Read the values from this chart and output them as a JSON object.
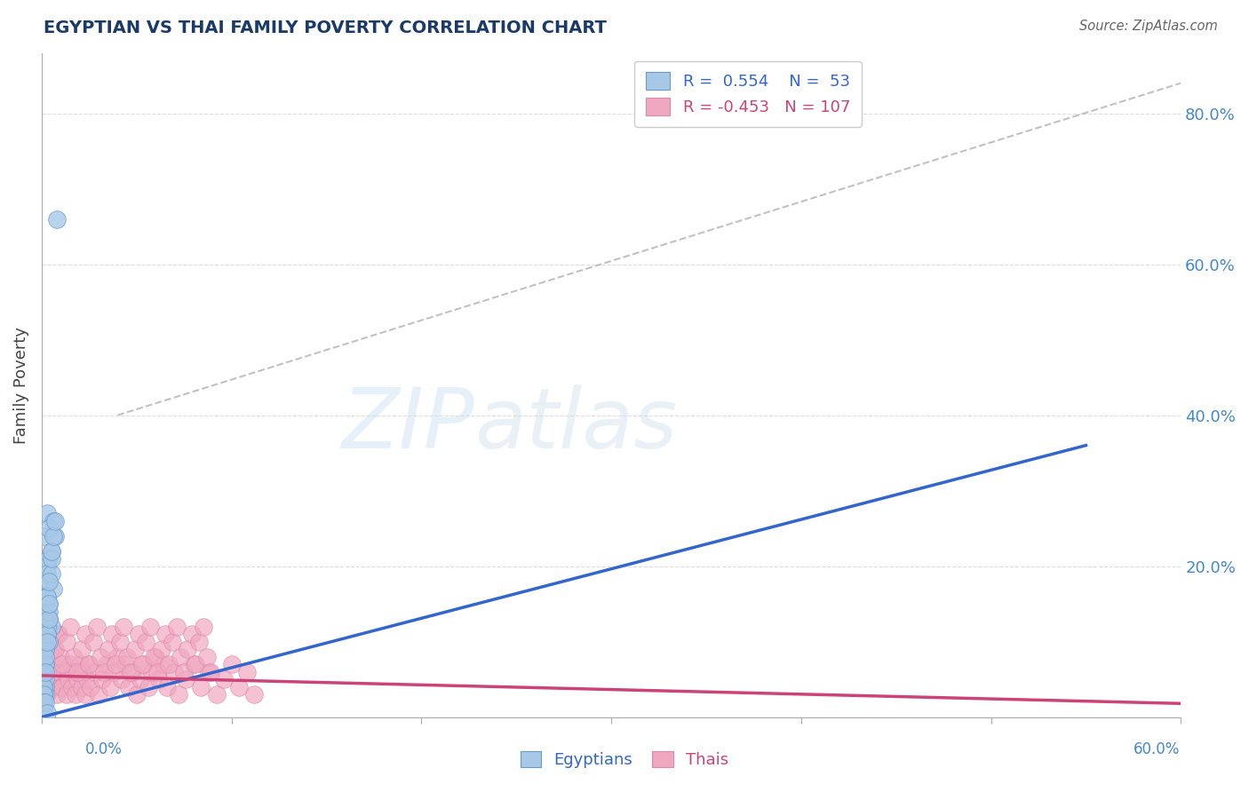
{
  "title": "EGYPTIAN VS THAI FAMILY POVERTY CORRELATION CHART",
  "source": "Source: ZipAtlas.com",
  "ylabel": "Family Poverty",
  "xmin": 0.0,
  "xmax": 0.6,
  "ymin": 0.0,
  "ymax": 0.88,
  "yticks": [
    0.0,
    0.2,
    0.4,
    0.6,
    0.8
  ],
  "ytick_labels": [
    "",
    "20.0%",
    "40.0%",
    "60.0%",
    "80.0%"
  ],
  "xticks": [
    0.0,
    0.1,
    0.2,
    0.3,
    0.4,
    0.5,
    0.6
  ],
  "egyptian_R": 0.554,
  "egyptian_N": 53,
  "thai_R": -0.453,
  "thai_N": 107,
  "egyptian_color": "#a8c8e8",
  "thai_color": "#f0a8c0",
  "egyptian_line_color": "#3366cc",
  "thai_line_color": "#cc4477",
  "grid_color": "#dddddd",
  "ref_line_color": "#bbbbbb",
  "watermark_color": "#d0e4f0",
  "title_color": "#1a3a6a",
  "tick_label_color": "#4488cc",
  "source_color": "#666666",
  "egyptian_edge_color": "#6699cc",
  "thai_edge_color": "#dd88aa",
  "egyptian_points_x": [
    0.002,
    0.003,
    0.004,
    0.001,
    0.003,
    0.004,
    0.005,
    0.001,
    0.002,
    0.003,
    0.001,
    0.002,
    0.004,
    0.005,
    0.006,
    0.007,
    0.002,
    0.003,
    0.001,
    0.002,
    0.003,
    0.004,
    0.001,
    0.002,
    0.001,
    0.003,
    0.003,
    0.004,
    0.002,
    0.001,
    0.003,
    0.004,
    0.006,
    0.001,
    0.002,
    0.003,
    0.004,
    0.005,
    0.001,
    0.002,
    0.003,
    0.005,
    0.008,
    0.001,
    0.002,
    0.003,
    0.004,
    0.004,
    0.005,
    0.006,
    0.007,
    0.002,
    0.003
  ],
  "egyptian_points_y": [
    0.04,
    0.27,
    0.21,
    0.24,
    0.2,
    0.13,
    0.12,
    0.08,
    0.09,
    0.11,
    0.06,
    0.05,
    0.1,
    0.22,
    0.26,
    0.24,
    0.03,
    0.14,
    0.02,
    0.15,
    0.18,
    0.15,
    0.02,
    0.07,
    0.03,
    0.16,
    0.19,
    0.25,
    0.07,
    0.01,
    0.12,
    0.14,
    0.17,
    0.04,
    0.09,
    0.11,
    0.13,
    0.19,
    0.03,
    0.08,
    0.16,
    0.21,
    0.66,
    0.02,
    0.06,
    0.1,
    0.15,
    0.18,
    0.22,
    0.24,
    0.26,
    0.02,
    0.005
  ],
  "thai_points_x": [
    0.001,
    0.002,
    0.003,
    0.004,
    0.005,
    0.006,
    0.007,
    0.008,
    0.009,
    0.01,
    0.011,
    0.012,
    0.013,
    0.014,
    0.015,
    0.016,
    0.017,
    0.018,
    0.019,
    0.02,
    0.021,
    0.022,
    0.023,
    0.024,
    0.025,
    0.026,
    0.028,
    0.03,
    0.032,
    0.034,
    0.036,
    0.038,
    0.04,
    0.042,
    0.044,
    0.046,
    0.048,
    0.05,
    0.052,
    0.054,
    0.056,
    0.058,
    0.06,
    0.062,
    0.064,
    0.066,
    0.07,
    0.072,
    0.076,
    0.08,
    0.084,
    0.088,
    0.092,
    0.096,
    0.1,
    0.104,
    0.108,
    0.112,
    0.002,
    0.004,
    0.006,
    0.008,
    0.001,
    0.003,
    0.005,
    0.007,
    0.009,
    0.011,
    0.013,
    0.015,
    0.017,
    0.019,
    0.021,
    0.023,
    0.025,
    0.027,
    0.029,
    0.031,
    0.033,
    0.035,
    0.037,
    0.039,
    0.041,
    0.043,
    0.045,
    0.047,
    0.049,
    0.051,
    0.053,
    0.055,
    0.057,
    0.059,
    0.061,
    0.063,
    0.065,
    0.067,
    0.069,
    0.071,
    0.073,
    0.075,
    0.077,
    0.079,
    0.081,
    0.083,
    0.085,
    0.087,
    0.089
  ],
  "thai_points_y": [
    0.04,
    0.06,
    0.03,
    0.05,
    0.07,
    0.04,
    0.06,
    0.03,
    0.05,
    0.08,
    0.04,
    0.06,
    0.03,
    0.05,
    0.07,
    0.04,
    0.06,
    0.03,
    0.05,
    0.07,
    0.04,
    0.06,
    0.03,
    0.05,
    0.07,
    0.04,
    0.06,
    0.03,
    0.05,
    0.07,
    0.04,
    0.06,
    0.08,
    0.05,
    0.07,
    0.04,
    0.06,
    0.03,
    0.05,
    0.07,
    0.04,
    0.06,
    0.08,
    0.05,
    0.07,
    0.04,
    0.06,
    0.03,
    0.05,
    0.07,
    0.04,
    0.06,
    0.03,
    0.05,
    0.07,
    0.04,
    0.06,
    0.03,
    0.1,
    0.13,
    0.09,
    0.11,
    0.08,
    0.12,
    0.06,
    0.09,
    0.11,
    0.07,
    0.1,
    0.12,
    0.08,
    0.06,
    0.09,
    0.11,
    0.07,
    0.1,
    0.12,
    0.08,
    0.06,
    0.09,
    0.11,
    0.07,
    0.1,
    0.12,
    0.08,
    0.06,
    0.09,
    0.11,
    0.07,
    0.1,
    0.12,
    0.08,
    0.06,
    0.09,
    0.11,
    0.07,
    0.1,
    0.12,
    0.08,
    0.06,
    0.09,
    0.11,
    0.07,
    0.1,
    0.12,
    0.08,
    0.06
  ],
  "egyptian_line_x": [
    0.0,
    0.55
  ],
  "egyptian_line_y": [
    0.0,
    0.36
  ],
  "thai_line_x": [
    0.0,
    0.6
  ],
  "thai_line_y": [
    0.055,
    0.018
  ],
  "ref_line_x": [
    0.04,
    0.6
  ],
  "ref_line_y": [
    0.4,
    0.84
  ]
}
